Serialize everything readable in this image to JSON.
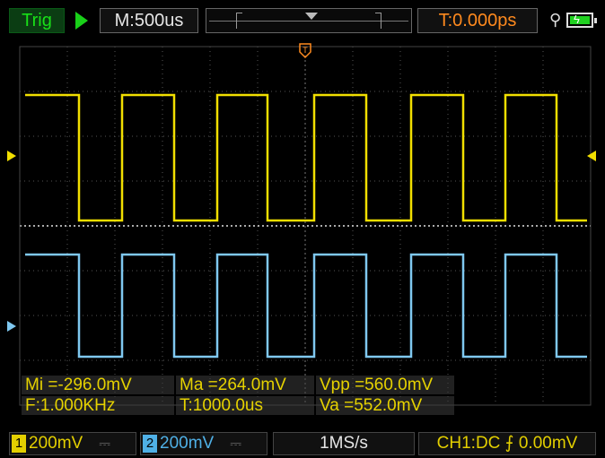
{
  "topbar": {
    "trig_label": "Trig",
    "timebase": "M:500us",
    "trigger_time": "T:0.000ps",
    "run_icon": "play-icon",
    "usb_icon": "usb-icon",
    "battery_icon": "battery-charging-icon"
  },
  "screen": {
    "trigger_marker": "T",
    "grid_cols": 12,
    "grid_rows": 8
  },
  "measurements": {
    "min": "Mi =-296.0mV",
    "max": "Ma =264.0mV",
    "vpp": "Vpp =560.0mV",
    "freq": "F:1.000KHz",
    "period": "T:1000.0us",
    "vavg": "Va =552.0mV"
  },
  "bottombar": {
    "ch1_number": "1",
    "ch1_scale": "200mV",
    "ch1_coupling": "⎓",
    "ch2_number": "2",
    "ch2_scale": "200mV",
    "ch2_coupling": "⎓",
    "sample_rate": "1MS/s",
    "trigger_info": "CH1:DC ⨍ 0.00mV"
  },
  "colors": {
    "ch1": "#f2df00",
    "ch2": "#7fc8f0",
    "trigger": "#ff8a1e",
    "trig_label": "#18e018"
  }
}
